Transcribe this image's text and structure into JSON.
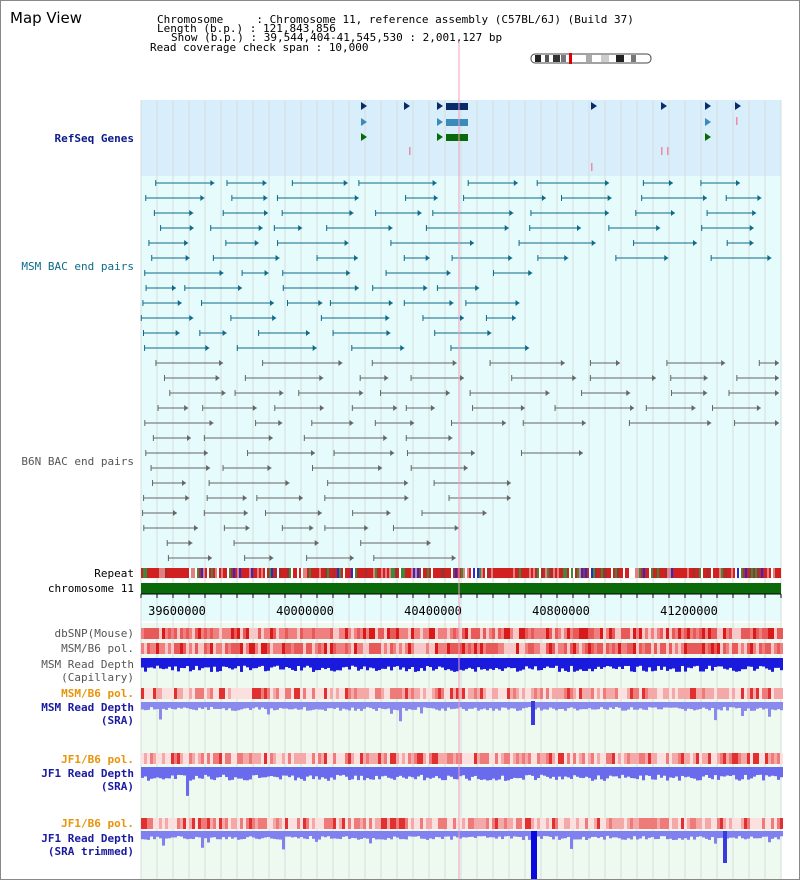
{
  "header": {
    "title": "Map View",
    "chromosome_label": "Chromosome     : ",
    "chromosome_value": "Chromosome 11, reference assembly (C57BL/6J) (Build 37)",
    "length_label": "Length (b.p.) : ",
    "length_value": "121,843,856",
    "show_label": "Show (b.p.) : ",
    "show_value": "39,544,404-41,545,530 : 2,001,127 bp",
    "coverage_label": "Read coverage check span : ",
    "coverage_value": "10,000"
  },
  "tracks": {
    "refseq": "RefSeq Genes",
    "msm_bac": "MSM BAC end pairs",
    "b6n_bac": "B6N BAC end pairs",
    "repeat": "Repeat",
    "chromosome": "chromosome 11",
    "dbsnp": "dbSNP(Mouse)",
    "msm_b6_pol": "MSM/B6 pol.",
    "msm_depth_cap_1": "MSM Read Depth",
    "msm_depth_cap_2": "(Capillary)",
    "msm_b6_pol_2": "MSM/B6 pol.",
    "msm_depth_sra_1": "MSM Read Depth",
    "msm_depth_sra_2": "(SRA)",
    "jf1_b6_pol": "JF1/B6 pol.",
    "jf1_depth_sra_1": "JF1 Read Depth",
    "jf1_depth_sra_2": "(SRA)",
    "jf1_b6_pol_2": "JF1/B6 pol.",
    "jf1_depth_trim_1": "JF1 Read Depth",
    "jf1_depth_trim_2": "(SRA trimmed)"
  },
  "ruler": {
    "ticks": [
      "39600000",
      "40000000",
      "40400000",
      "40800000",
      "41200000"
    ]
  },
  "colors": {
    "refseq_bg": "#d8eefa",
    "track_bg": "#e6fbfb",
    "msm_color": "#0d6a8a",
    "b6n_color": "#666666",
    "chrom_green": "#0a6a0a",
    "depth_blue": "#1a1adc",
    "depth_light": "#7a7aee",
    "highlight_pink": "#f0a0c0"
  }
}
